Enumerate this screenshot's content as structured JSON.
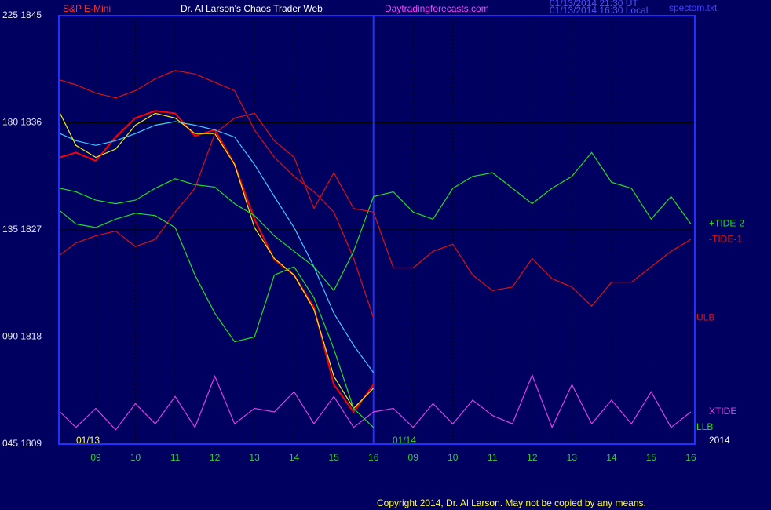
{
  "chart_data": {
    "type": "line",
    "title": "Dr. Al Larson's Chaos Trader Web",
    "annotations": [
      "S&P E-Mini",
      "Daytradingforecasts.com",
      "01/13/2014 21:30 UT",
      "01/13/2014 16:30 Local",
      "spectom.txt",
      "01/13",
      "01/14",
      "2014",
      "Copyright 2014, Dr. Al Larson. May not be copied by any means."
    ],
    "x": [
      0.1,
      0.5,
      1,
      1.5,
      2,
      2.5,
      3,
      3.5,
      4,
      4.5,
      5,
      5.5,
      6,
      6.5,
      7,
      7.5,
      8,
      8.5,
      9,
      9.5,
      10,
      10.5,
      11,
      11.5,
      12,
      12.5,
      13,
      13.5,
      14,
      14.5,
      15,
      15.5,
      16
    ],
    "xlim": [
      0.07,
      16.1
    ],
    "xticks": [
      {
        "value": 1,
        "label": "09"
      },
      {
        "value": 2,
        "label": "10"
      },
      {
        "value": 3,
        "label": "11"
      },
      {
        "value": 4,
        "label": "12"
      },
      {
        "value": 5,
        "label": "13"
      },
      {
        "value": 6,
        "label": "14"
      },
      {
        "value": 7,
        "label": "15"
      },
      {
        "value": 8,
        "label": "16"
      },
      {
        "value": 9,
        "label": "09"
      },
      10,
      11,
      12,
      13,
      14,
      15,
      16
    ],
    "ylim": [
      1809,
      1845
    ],
    "yticks": [
      {
        "value": 1809,
        "label": "045 1809"
      },
      {
        "value": 1818,
        "label": "090 1818"
      },
      {
        "value": 1827,
        "label": "135 1827"
      },
      {
        "value": 1836,
        "label": "180 1836"
      },
      {
        "value": 1845,
        "label": "225 1845"
      }
    ],
    "grid": true,
    "divider": 8,
    "series": [
      {
        "color": "#ff0000",
        "values": [
          1833.1,
          1833.5,
          1832.8,
          1834.8,
          1836.4,
          1837.0,
          1836.8,
          1834.9,
          1835.4,
          1832.5,
          1827.9,
          1824.5,
          1823.2,
          1820.5,
          1814.0,
          1811.7,
          1814.0,
          null,
          null,
          null,
          null,
          null,
          null,
          null,
          null,
          null,
          null,
          null,
          null,
          null,
          null,
          null,
          null
        ]
      },
      {
        "color": "#40c8ff",
        "values": [
          1835.1,
          1834.5,
          1834.1,
          1834.5,
          1835.1,
          1835.8,
          1836.1,
          1835.8,
          1835.4,
          1834.8,
          1832.5,
          1829.8,
          1827.2,
          1823.9,
          1820.0,
          1817.3,
          1815.0,
          null,
          null,
          null,
          null,
          null,
          null,
          null,
          null,
          null,
          null,
          null,
          null,
          null,
          null,
          null,
          null
        ]
      },
      {
        "color": "#f0f000",
        "values": [
          1836.8,
          1834.1,
          1833.1,
          1833.8,
          1835.8,
          1836.8,
          1836.4,
          1835.1,
          1835.1,
          1832.5,
          1827.2,
          1824.6,
          1823.2,
          1820.3,
          1814.7,
          1812.0,
          1813.7,
          null,
          null,
          null,
          null,
          null,
          null,
          null,
          null,
          null,
          null,
          null,
          null,
          null,
          null,
          null,
          null
        ]
      },
      {
        "name": "ULB",
        "color": "#e01010",
        "values": [
          1839.6,
          1839.2,
          1838.5,
          1838.1,
          1838.7,
          1839.7,
          1840.4,
          1840.1,
          1839.4,
          1838.7,
          1835.4,
          1833.1,
          1831.5,
          1830.2,
          1828.5,
          1824.6,
          1819.6,
          null,
          null,
          null,
          null,
          null,
          null,
          null,
          null,
          null,
          null,
          null,
          null,
          null,
          null,
          null,
          null
        ]
      },
      {
        "name": "+TIDE-2",
        "color": "#20e020",
        "values": [
          1830.5,
          1830.2,
          1829.5,
          1829.2,
          1829.5,
          1830.5,
          1831.3,
          1830.8,
          1830.6,
          1829.2,
          1828.2,
          1826.5,
          1825.2,
          1823.9,
          1821.9,
          1825.2,
          1829.8,
          1830.2,
          1828.5,
          1827.9,
          1830.5,
          1831.5,
          1831.8,
          1830.5,
          1829.2,
          1830.5,
          1831.5,
          1833.5,
          1831.0,
          1830.5,
          1827.9,
          1829.8,
          1827.5
        ]
      },
      {
        "name": "-TIDE-1",
        "color": "#e01010",
        "values": [
          1824.9,
          1825.9,
          1826.5,
          1826.9,
          1825.6,
          1826.2,
          1828.5,
          1830.5,
          1835.1,
          1836.4,
          1836.8,
          1834.5,
          1833.1,
          1828.8,
          1831.8,
          1828.8,
          1828.5,
          1823.8,
          1823.8,
          1825.2,
          1825.8,
          1823.2,
          1821.9,
          1822.2,
          1824.6,
          1822.9,
          1822.2,
          1820.6,
          1822.6,
          1822.6,
          1823.9,
          1825.2,
          1826.2
        ]
      },
      {
        "name": "XTIDE",
        "color": "#e040e0",
        "values": [
          1811.7,
          1810.4,
          1812.0,
          1810.2,
          1812.4,
          1810.7,
          1813.0,
          1810.4,
          1814.7,
          1810.7,
          1812.0,
          1811.7,
          1813.4,
          1810.7,
          1813.0,
          1810.4,
          1811.7,
          1812.0,
          1810.4,
          1812.4,
          1810.7,
          1812.7,
          1811.4,
          1810.7,
          1814.8,
          1810.4,
          1814.0,
          1810.7,
          1812.7,
          1810.7,
          1813.4,
          1810.4,
          1811.7
        ]
      },
      {
        "name": "LLB",
        "color": "#20e020",
        "values": [
          1828.6,
          1827.5,
          1827.2,
          1827.9,
          1828.4,
          1828.2,
          1827.2,
          1823.2,
          1820.0,
          1817.6,
          1818.0,
          1823.2,
          1823.9,
          1821.3,
          1817.0,
          1812.0,
          1810.4,
          null,
          null,
          null,
          null,
          null,
          null,
          null,
          null,
          null,
          null,
          null,
          null,
          null,
          null,
          null,
          null
        ]
      }
    ]
  }
}
